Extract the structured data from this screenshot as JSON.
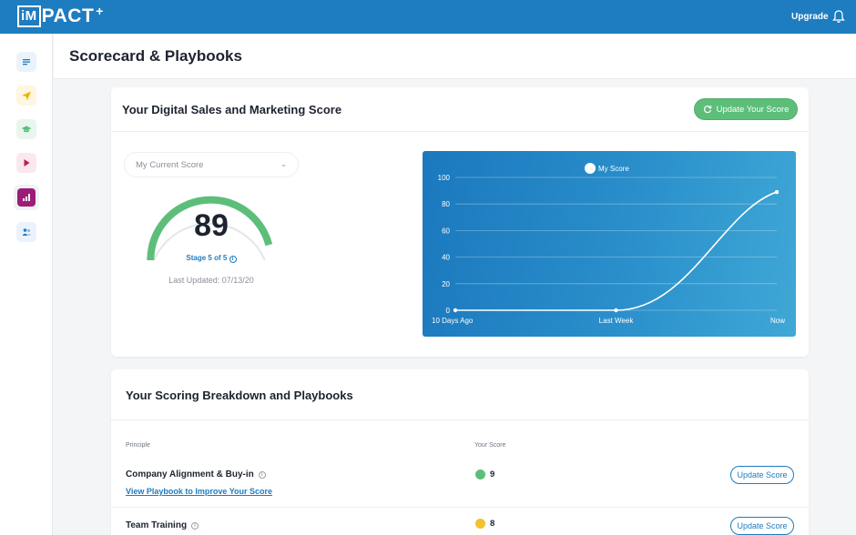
{
  "app": {
    "logo_box": "iM",
    "logo_rest": "PACT",
    "logo_plus": "+",
    "upgrade_label": "Upgrade"
  },
  "header": {
    "title": "Scorecard & Playbooks"
  },
  "sidebar": {
    "items": [
      {
        "name": "document-icon",
        "color": "#1e7cc0",
        "bg": "#eaf3fb"
      },
      {
        "name": "paper-plane-icon",
        "color": "#f2b400",
        "bg": "#fdf6e0"
      },
      {
        "name": "graduation-cap-icon",
        "color": "#5dbe7a",
        "bg": "#e9f6ee"
      },
      {
        "name": "play-icon",
        "color": "#c2185b",
        "bg": "#fbe8ef"
      },
      {
        "name": "bar-chart-icon",
        "color": "#ffffff",
        "bg": "#9d1c78"
      },
      {
        "name": "users-icon",
        "color": "#1e7cc0",
        "bg": "#eaf3fb"
      }
    ]
  },
  "score_card": {
    "title": "Your Digital Sales and Marketing Score",
    "update_button": "Update Your Score",
    "select_value": "My Current Score",
    "score": "89",
    "score_fraction": 0.89,
    "stage": "Stage 5 of 5",
    "last_updated": "Last Updated: 07/13/20"
  },
  "chart_data": {
    "type": "line",
    "series": [
      {
        "name": "My Score",
        "values": [
          0,
          0,
          89
        ]
      }
    ],
    "categories": [
      "10 Days Ago",
      "Last Week",
      "Now"
    ],
    "yticks": [
      "100",
      "80",
      "60",
      "40",
      "20",
      "0"
    ],
    "ylim": [
      0,
      100
    ],
    "grid": true,
    "legend_position": "top-center"
  },
  "breakdown": {
    "title": "Your Scoring Breakdown and Playbooks",
    "col_principle": "Principle",
    "col_score": "Your Score",
    "rows": [
      {
        "principle": "Company Alignment & Buy-in",
        "score": "9",
        "dot_color": "#5dbe7a",
        "link": "View Playbook to Improve Your Score",
        "button": "Update Score"
      },
      {
        "principle": "Team Training",
        "score": "8",
        "dot_color": "#f2c230",
        "button": "Update Score"
      }
    ]
  }
}
